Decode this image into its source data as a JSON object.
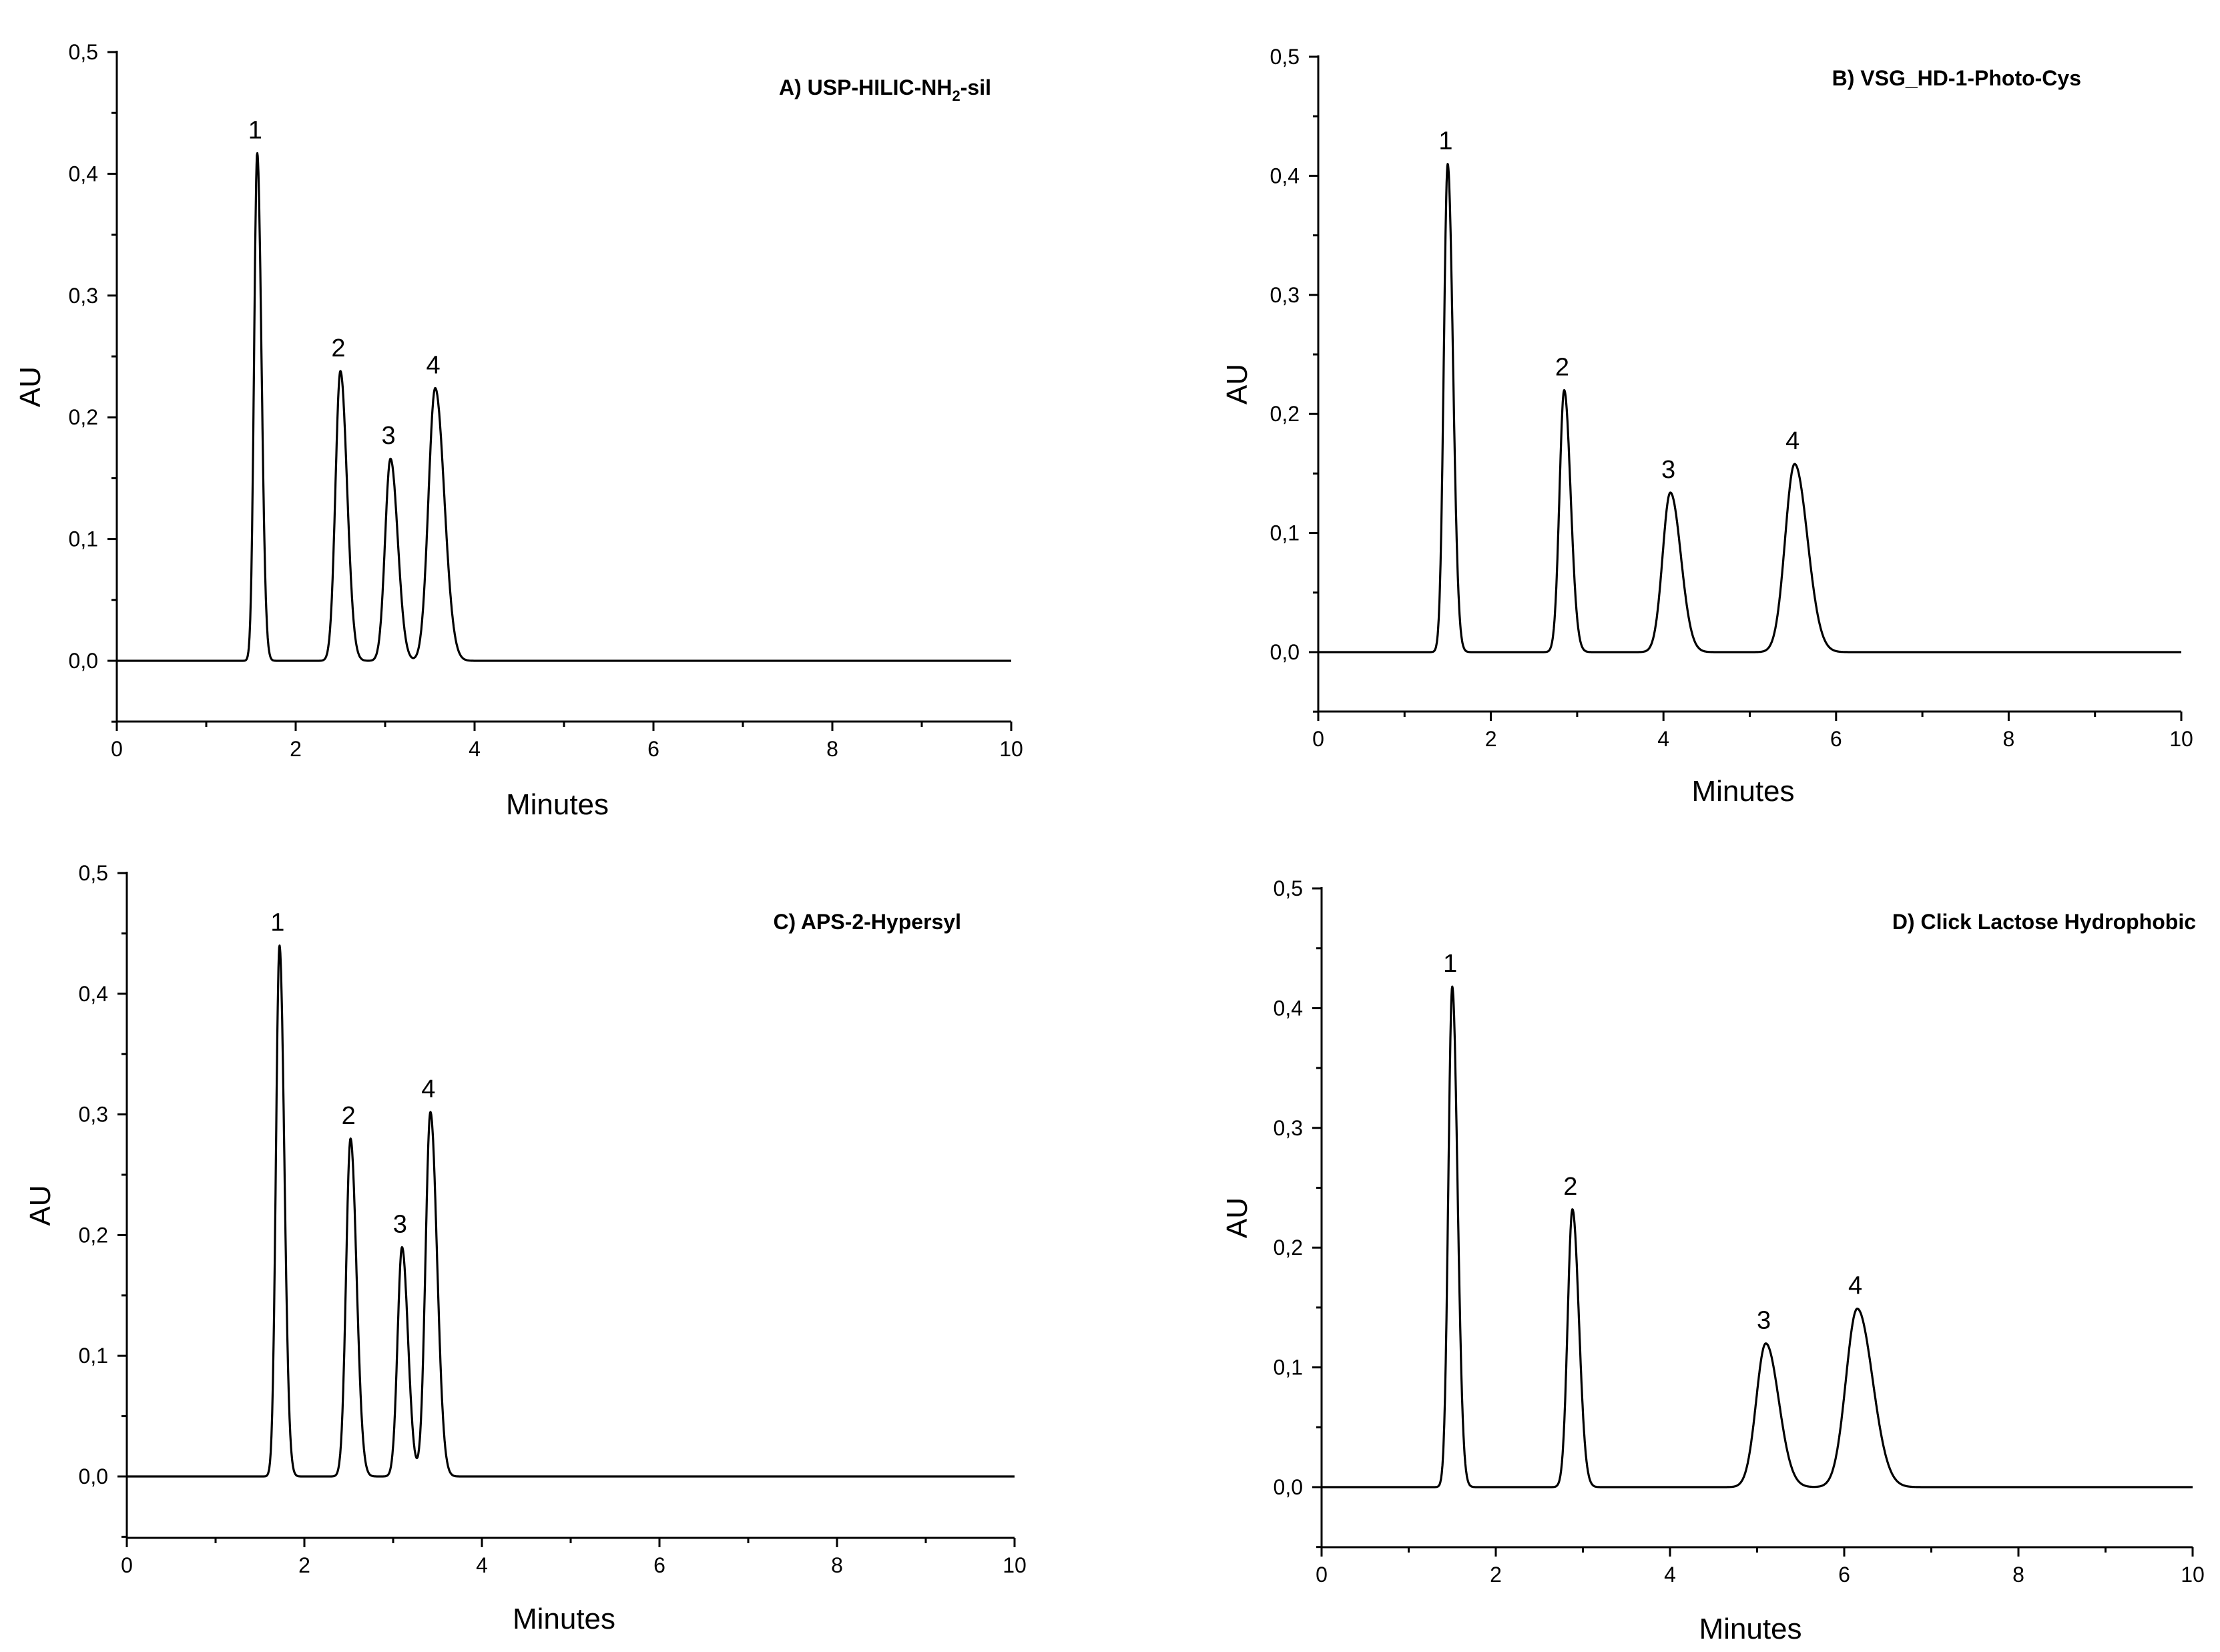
{
  "chart_data": [
    {
      "type": "line",
      "panel": "A",
      "title": "A) USP-HILIC-NH",
      "title_subscript": "2",
      "title_suffix": "-sil",
      "xlabel": "Minutes",
      "ylabel": "AU",
      "xlim": [
        0,
        10
      ],
      "ylim": [
        -0.05,
        0.5
      ],
      "xticks": [
        0,
        2,
        4,
        6,
        8,
        10
      ],
      "xtick_labels": [
        "0",
        "2",
        "4",
        "6",
        "8",
        "10"
      ],
      "yticks": [
        0.0,
        0.1,
        0.2,
        0.3,
        0.4,
        0.5
      ],
      "ytick_labels": [
        "0,0",
        "0,1",
        "0,2",
        "0,3",
        "0,4",
        "0,5"
      ],
      "peaks": [
        {
          "label": "1",
          "time": 1.57,
          "height": 0.417,
          "width": 0.035
        },
        {
          "label": "2",
          "time": 2.5,
          "height": 0.238,
          "width": 0.055
        },
        {
          "label": "3",
          "time": 3.06,
          "height": 0.166,
          "width": 0.06
        },
        {
          "label": "4",
          "time": 3.56,
          "height": 0.224,
          "width": 0.075
        }
      ]
    },
    {
      "type": "line",
      "panel": "B",
      "title": "B) VSG_HD-1-Photo-Cys",
      "title_subscript": "",
      "title_suffix": "",
      "xlabel": "Minutes",
      "ylabel": "AU",
      "xlim": [
        0,
        10
      ],
      "ylim": [
        -0.05,
        0.5
      ],
      "xticks": [
        0,
        2,
        4,
        6,
        8,
        10
      ],
      "xtick_labels": [
        "0",
        "2",
        "4",
        "6",
        "8",
        "10"
      ],
      "yticks": [
        0.0,
        0.1,
        0.2,
        0.3,
        0.4,
        0.5
      ],
      "ytick_labels": [
        "0,0",
        "0,1",
        "0,2",
        "0,3",
        "0,4",
        "0,5"
      ],
      "peaks": [
        {
          "label": "1",
          "time": 1.5,
          "height": 0.41,
          "width": 0.045
        },
        {
          "label": "2",
          "time": 2.85,
          "height": 0.22,
          "width": 0.055
        },
        {
          "label": "3",
          "time": 4.08,
          "height": 0.134,
          "width": 0.09
        },
        {
          "label": "4",
          "time": 5.52,
          "height": 0.158,
          "width": 0.11
        }
      ]
    },
    {
      "type": "line",
      "panel": "C",
      "title": "C) APS-2-Hypersyl",
      "title_subscript": "",
      "title_suffix": "",
      "xlabel": "Minutes",
      "ylabel": "AU",
      "xlim": [
        0,
        10
      ],
      "ylim": [
        -0.05,
        0.5
      ],
      "xticks": [
        0,
        2,
        4,
        6,
        8,
        10
      ],
      "xtick_labels": [
        "0",
        "2",
        "4",
        "6",
        "8",
        "10"
      ],
      "yticks": [
        0.0,
        0.1,
        0.2,
        0.3,
        0.4,
        0.5
      ],
      "ytick_labels": [
        "0,0",
        "0,1",
        "0,2",
        "0,3",
        "0,4",
        "0,5"
      ],
      "peaks": [
        {
          "label": "1",
          "time": 1.72,
          "height": 0.44,
          "width": 0.04
        },
        {
          "label": "2",
          "time": 2.52,
          "height": 0.28,
          "width": 0.05
        },
        {
          "label": "3",
          "time": 3.1,
          "height": 0.19,
          "width": 0.05
        },
        {
          "label": "4",
          "time": 3.42,
          "height": 0.302,
          "width": 0.055
        }
      ]
    },
    {
      "type": "line",
      "panel": "D",
      "title": "D) Click Lactose  Hydrophobic",
      "title_subscript": "",
      "title_suffix": "",
      "xlabel": "Minutes",
      "ylabel": "AU",
      "xlim": [
        0,
        10
      ],
      "ylim": [
        -0.05,
        0.5
      ],
      "xticks": [
        0,
        2,
        4,
        6,
        8,
        10
      ],
      "xtick_labels": [
        "0",
        "2",
        "4",
        "6",
        "8",
        "10"
      ],
      "yticks": [
        0.0,
        0.1,
        0.2,
        0.3,
        0.4,
        0.5
      ],
      "ytick_labels": [
        "0,0",
        "0,1",
        "0,2",
        "0,3",
        "0,4",
        "0,5"
      ],
      "peaks": [
        {
          "label": "1",
          "time": 1.5,
          "height": 0.418,
          "width": 0.045
        },
        {
          "label": "2",
          "time": 2.88,
          "height": 0.232,
          "width": 0.055
        },
        {
          "label": "3",
          "time": 5.1,
          "height": 0.12,
          "width": 0.11
        },
        {
          "label": "4",
          "time": 6.15,
          "height": 0.149,
          "width": 0.13
        }
      ]
    }
  ]
}
